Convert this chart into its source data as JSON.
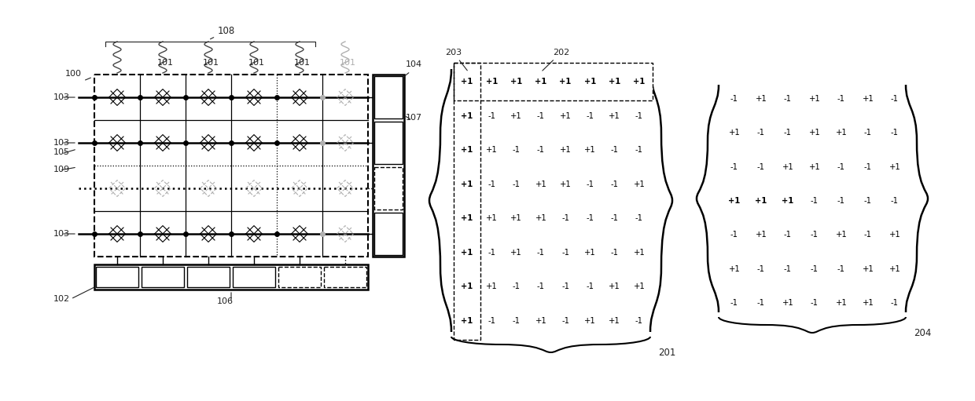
{
  "bg_color": "#ffffff",
  "matrix201": [
    [
      "+1",
      "+1",
      "+1",
      "+1",
      "+1",
      "+1",
      "+1",
      "+1"
    ],
    [
      "+1",
      "-1",
      "+1",
      "-1",
      "+1",
      "-1",
      "+1",
      "-1"
    ],
    [
      "+1",
      "+1",
      "-1",
      "-1",
      "+1",
      "+1",
      "-1",
      "-1"
    ],
    [
      "+1",
      "-1",
      "-1",
      "+1",
      "+1",
      "-1",
      "-1",
      "+1"
    ],
    [
      "+1",
      "+1",
      "+1",
      "+1",
      "-1",
      "-1",
      "-1",
      "-1"
    ],
    [
      "+1",
      "-1",
      "+1",
      "-1",
      "-1",
      "+1",
      "-1",
      "+1"
    ],
    [
      "+1",
      "+1",
      "-1",
      "-1",
      "-1",
      "-1",
      "+1",
      "+1"
    ],
    [
      "+1",
      "-1",
      "-1",
      "+1",
      "-1",
      "+1",
      "+1",
      "-1"
    ]
  ],
  "matrix204": [
    [
      "-1",
      "+1",
      "-1",
      "+1",
      "-1",
      "+1",
      "-1"
    ],
    [
      "+1",
      "-1",
      "-1",
      "+1",
      "+1",
      "-1",
      "-1"
    ],
    [
      "-1",
      "-1",
      "+1",
      "+1",
      "-1",
      "-1",
      "+1"
    ],
    [
      "+1",
      "+1",
      "+1",
      "-1",
      "-1",
      "-1",
      "-1"
    ],
    [
      "-1",
      "+1",
      "-1",
      "-1",
      "+1",
      "-1",
      "+1"
    ],
    [
      "+1",
      "-1",
      "-1",
      "-1",
      "-1",
      "+1",
      "+1"
    ],
    [
      "-1",
      "-1",
      "+1",
      "-1",
      "+1",
      "+1",
      "-1"
    ]
  ]
}
